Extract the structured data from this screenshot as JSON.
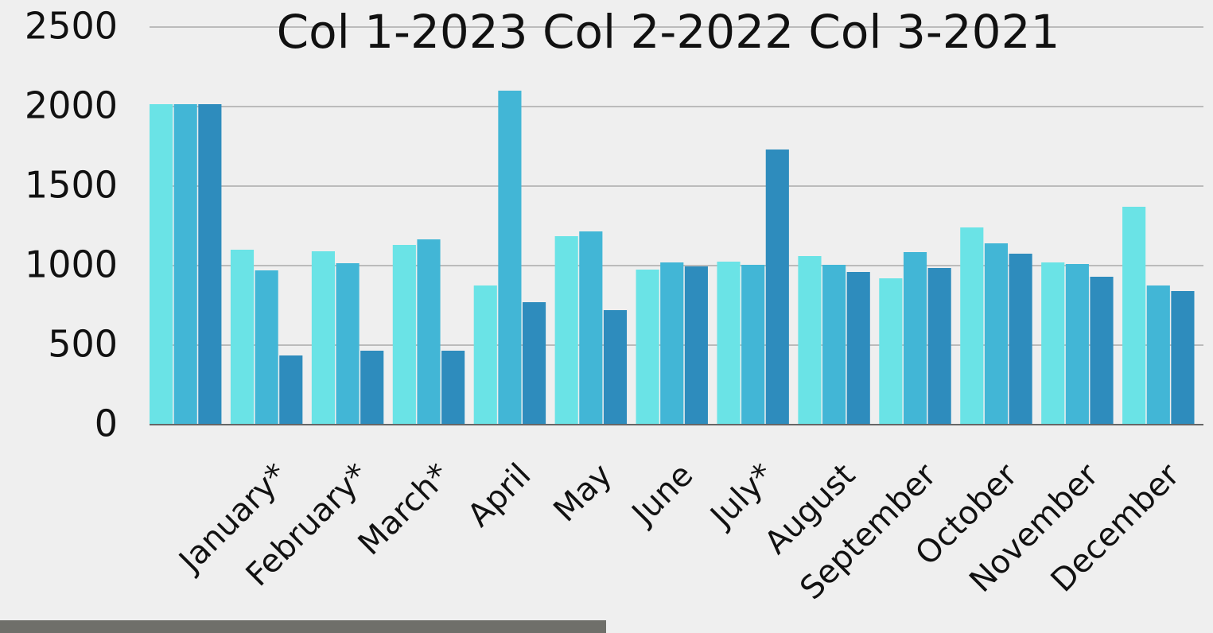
{
  "chart_data": {
    "type": "bar",
    "title": "Col 1-2023 Col 2-2022 Col 3-2021",
    "categories": [
      null,
      "January*",
      "February*",
      "March*",
      "April",
      "May",
      "June",
      "July*",
      "August",
      "September",
      "October",
      "November",
      "December"
    ],
    "series": [
      {
        "color": "#6ae3e6",
        "values": [
          2015,
          1100,
          1090,
          1130,
          875,
          1185,
          975,
          1025,
          1060,
          920,
          1240,
          1020,
          1370
        ]
      },
      {
        "color": "#42b6d6",
        "values": [
          2015,
          970,
          1015,
          1165,
          2100,
          1215,
          1020,
          1005,
          1005,
          1085,
          1140,
          1010,
          875
        ]
      },
      {
        "color": "#2e8cbd",
        "values": [
          2015,
          435,
          465,
          465,
          770,
          720,
          995,
          1730,
          960,
          985,
          1075,
          930,
          840
        ]
      }
    ],
    "ylim": [
      0,
      2500
    ],
    "yticks": [
      0,
      500,
      1000,
      1500,
      2000,
      2500
    ],
    "grid": true
  }
}
